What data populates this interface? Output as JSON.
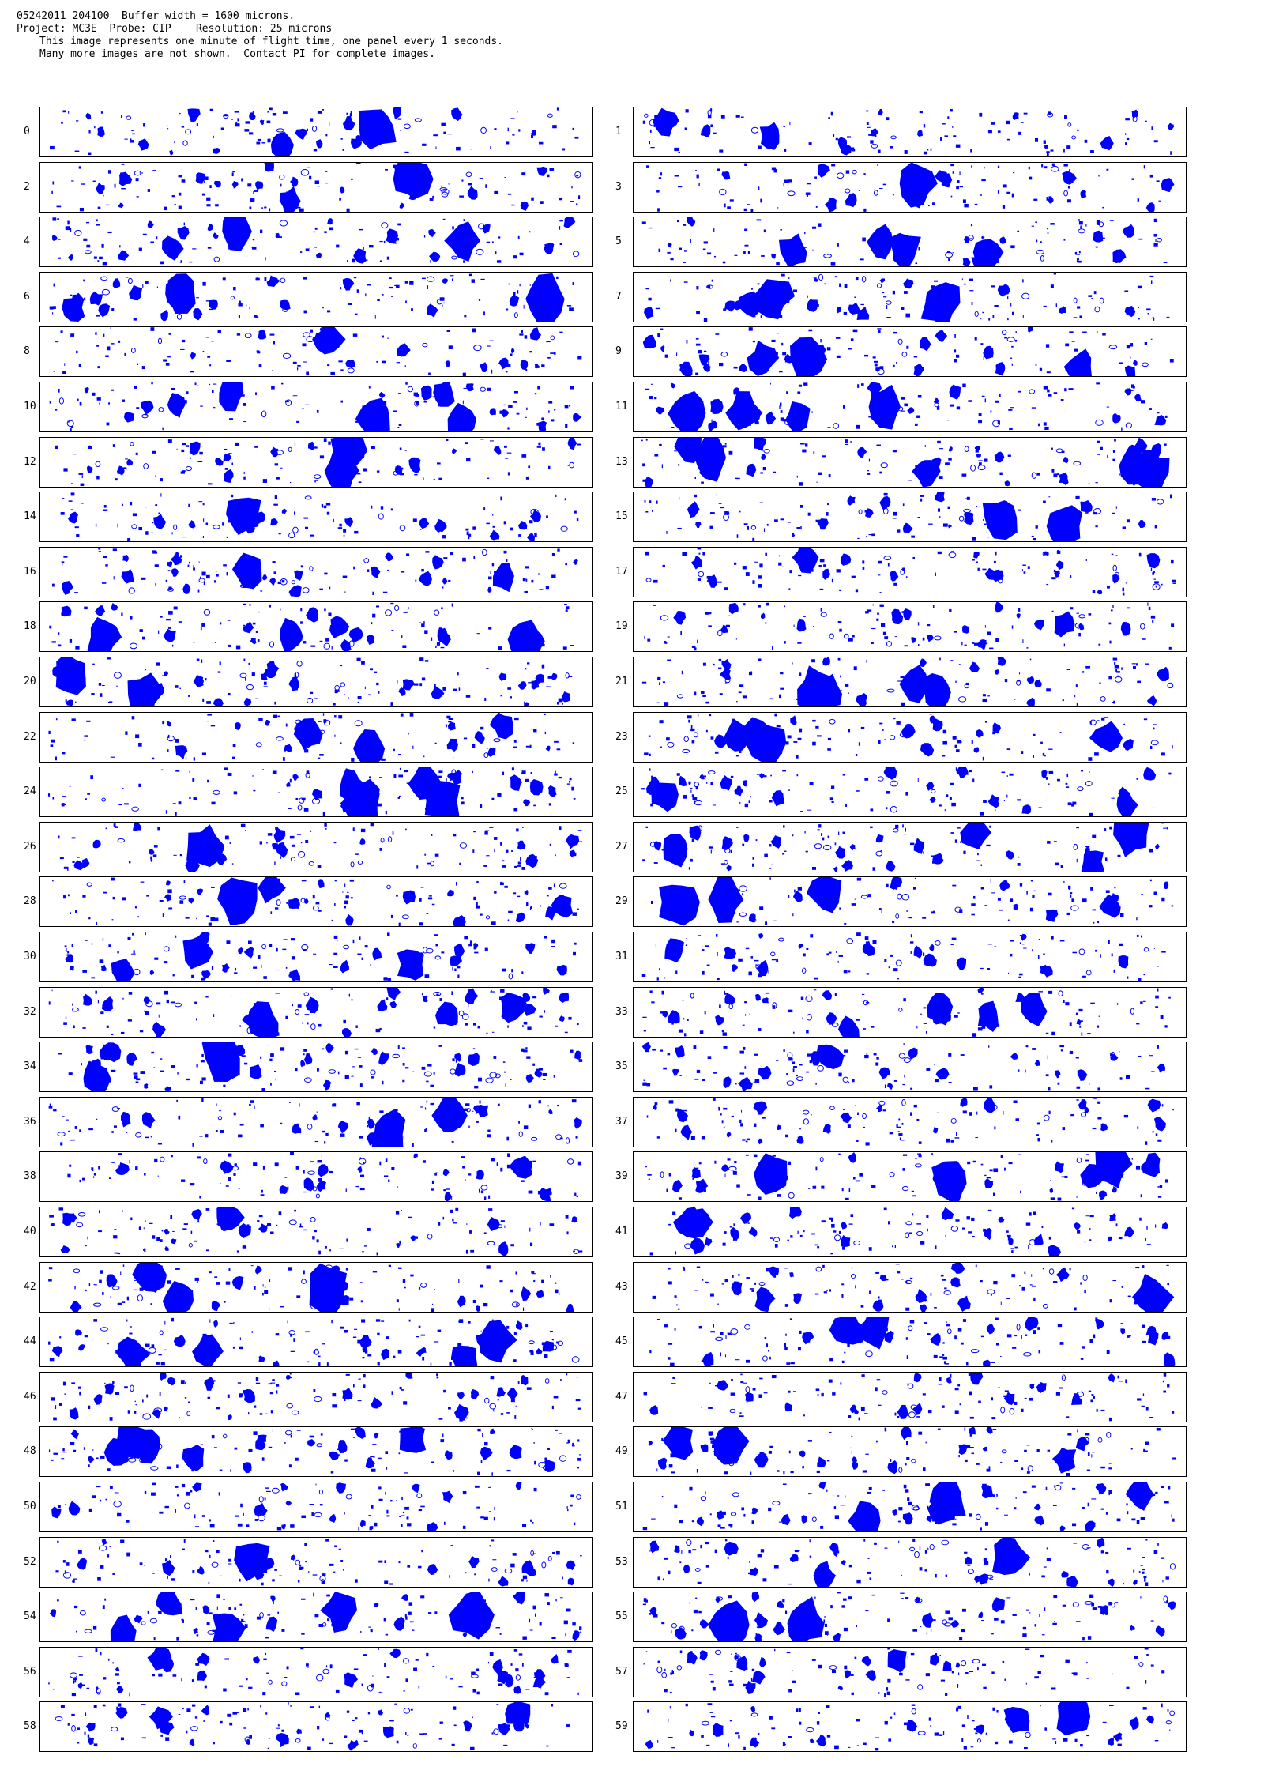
{
  "header": {
    "line1": "05242011 204100  Buffer width = 1600 microns.",
    "line2": "Project: MC3E  Probe: CIP    Resolution: 25 microns",
    "line3": "This image represents one minute of flight time, one panel every 1 seconds.",
    "line4": "Many more images are not shown.  Contact PI for complete images."
  },
  "particle_color": "#0000ff",
  "panels": [
    {
      "label": "0"
    },
    {
      "label": "1"
    },
    {
      "label": "2"
    },
    {
      "label": "3"
    },
    {
      "label": "4"
    },
    {
      "label": "5"
    },
    {
      "label": "6"
    },
    {
      "label": "7"
    },
    {
      "label": "8"
    },
    {
      "label": "9"
    },
    {
      "label": "10"
    },
    {
      "label": "11"
    },
    {
      "label": "12"
    },
    {
      "label": "13"
    },
    {
      "label": "14"
    },
    {
      "label": "15"
    },
    {
      "label": "16"
    },
    {
      "label": "17"
    },
    {
      "label": "18"
    },
    {
      "label": "19"
    },
    {
      "label": "20"
    },
    {
      "label": "21"
    },
    {
      "label": "22"
    },
    {
      "label": "23"
    },
    {
      "label": "24"
    },
    {
      "label": "25"
    },
    {
      "label": "26"
    },
    {
      "label": "27"
    },
    {
      "label": "28"
    },
    {
      "label": "29"
    },
    {
      "label": "30"
    },
    {
      "label": "31"
    },
    {
      "label": "32"
    },
    {
      "label": "33"
    },
    {
      "label": "34"
    },
    {
      "label": "35"
    },
    {
      "label": "36"
    },
    {
      "label": "37"
    },
    {
      "label": "38"
    },
    {
      "label": "39"
    },
    {
      "label": "40"
    },
    {
      "label": "41"
    },
    {
      "label": "42"
    },
    {
      "label": "43"
    },
    {
      "label": "44"
    },
    {
      "label": "45"
    },
    {
      "label": "46"
    },
    {
      "label": "47"
    },
    {
      "label": "48"
    },
    {
      "label": "49"
    },
    {
      "label": "50"
    },
    {
      "label": "51"
    },
    {
      "label": "52"
    },
    {
      "label": "53"
    },
    {
      "label": "54"
    },
    {
      "label": "55"
    },
    {
      "label": "56"
    },
    {
      "label": "57"
    },
    {
      "label": "58"
    },
    {
      "label": "59"
    }
  ]
}
